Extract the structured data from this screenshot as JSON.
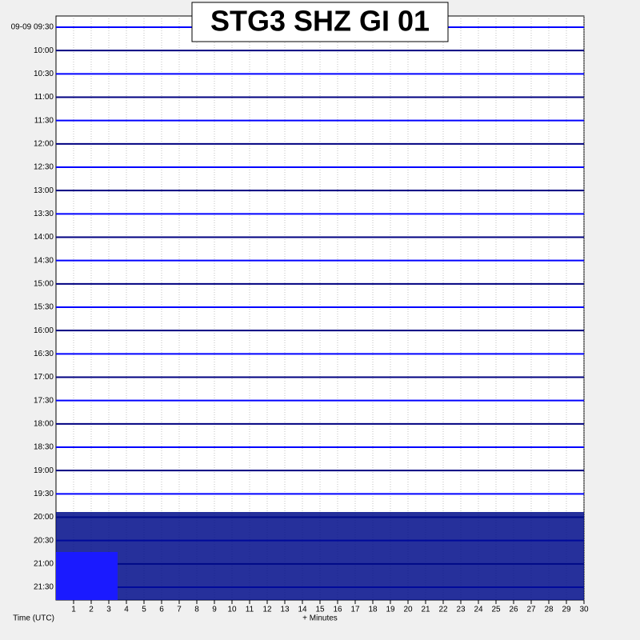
{
  "chart_data": {
    "type": "helicorder",
    "title": "STG3 SHZ GI 01",
    "y_label": "Time (UTC)",
    "x_label": "+ Minutes",
    "categories": [
      "09-09 09:30",
      "10:00",
      "10:30",
      "11:00",
      "11:30",
      "12:00",
      "12:30",
      "13:00",
      "13:30",
      "14:00",
      "14:30",
      "15:00",
      "15:30",
      "16:00",
      "16:30",
      "17:00",
      "17:30",
      "18:00",
      "18:30",
      "19:00",
      "19:30",
      "20:00",
      "20:30",
      "21:00",
      "21:30"
    ],
    "xlim": [
      0,
      30
    ],
    "xticks": [
      1,
      2,
      3,
      4,
      5,
      6,
      7,
      8,
      9,
      10,
      11,
      12,
      13,
      14,
      15,
      16,
      17,
      18,
      19,
      20,
      21,
      22,
      23,
      24,
      25,
      26,
      27,
      28,
      29,
      30
    ],
    "colors": [
      "#0000ff",
      "#000080"
    ],
    "grid": true
  }
}
